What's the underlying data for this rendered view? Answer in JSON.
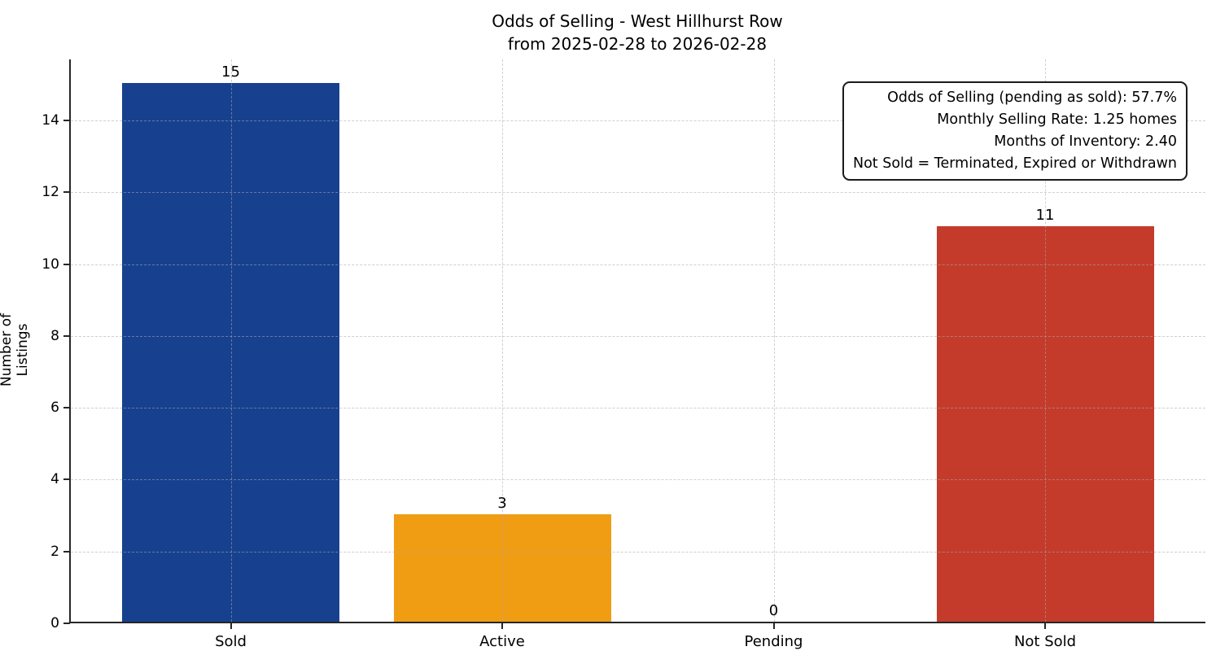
{
  "chart_data": {
    "type": "bar",
    "title": "Odds of Selling - West Hillhurst Row",
    "subtitle": "from 2025-02-28 to 2026-02-28",
    "categories": [
      "Sold",
      "Active",
      "Pending",
      "Not Sold"
    ],
    "values": [
      15,
      3,
      0,
      11
    ],
    "value_labels": [
      "15",
      "3",
      "0",
      "11"
    ],
    "bar_colors": [
      "#17418f",
      "#f09d13",
      null,
      "#c43b2c"
    ],
    "xlabel": "",
    "ylabel": "Number of Listings",
    "yticks": [
      0,
      2,
      4,
      6,
      8,
      10,
      12,
      14
    ],
    "ylim": [
      0,
      15.7
    ],
    "grid": true,
    "grid_style": "dashed",
    "legend": "none",
    "annotation": {
      "position": "top-right",
      "lines": [
        "Odds of Selling (pending as sold): 57.7%",
        "Monthly Selling Rate: 1.25 homes",
        "Months of Inventory: 2.40",
        "Not Sold = Terminated, Expired or Withdrawn"
      ]
    },
    "colors": {
      "background": "#ffffff",
      "spine": "#262626",
      "grid": "#aaaaaa",
      "text": "#000000"
    }
  }
}
